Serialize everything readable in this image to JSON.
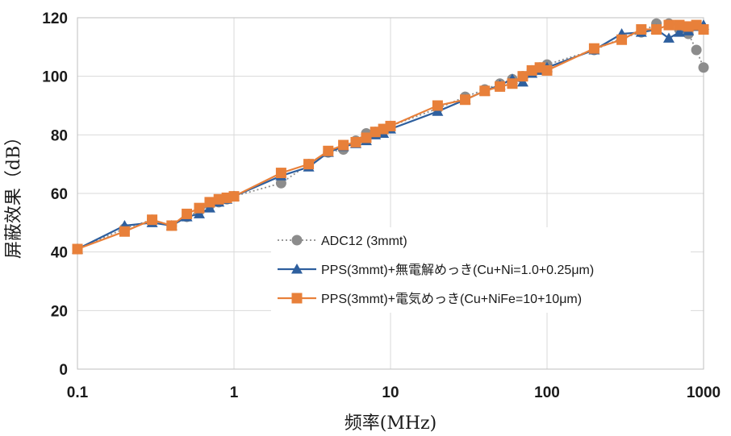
{
  "chart_data": {
    "type": "line",
    "xscale": "log",
    "xlim": [
      0.1,
      1000
    ],
    "ylim": [
      0,
      120
    ],
    "xticks": [
      0.1,
      1,
      10,
      100,
      1000
    ],
    "xtick_labels": [
      "0.1",
      "1",
      "10",
      "100",
      "1000"
    ],
    "yticks": [
      0,
      20,
      40,
      60,
      80,
      100,
      120
    ],
    "ytick_labels": [
      "0",
      "20",
      "40",
      "60",
      "80",
      "100",
      "120"
    ],
    "xlabel": "频率(MHz)",
    "ylabel": "屏蔽效果（dB）",
    "grid": true,
    "legend_position": "bottom-right",
    "series": [
      {
        "name": "ADC12 (3mmt)",
        "color": "#8c8c8c",
        "marker": "circle",
        "line_style": "dotted",
        "points": [
          [
            0.1,
            41
          ],
          [
            0.2,
            48
          ],
          [
            0.3,
            51
          ],
          [
            0.4,
            49
          ],
          [
            0.5,
            52
          ],
          [
            0.6,
            54
          ],
          [
            0.7,
            56
          ],
          [
            0.8,
            57
          ],
          [
            0.9,
            58
          ],
          [
            1,
            59
          ],
          [
            2,
            63.5
          ],
          [
            3,
            70
          ],
          [
            4,
            74
          ],
          [
            5,
            75
          ],
          [
            6,
            78
          ],
          [
            7,
            80.5
          ],
          [
            8,
            81
          ],
          [
            9,
            82
          ],
          [
            10,
            83
          ],
          [
            20,
            89
          ],
          [
            30,
            93
          ],
          [
            40,
            95.5
          ],
          [
            50,
            97.5
          ],
          [
            60,
            99
          ],
          [
            70,
            100
          ],
          [
            80,
            102
          ],
          [
            90,
            103
          ],
          [
            100,
            104
          ],
          [
            200,
            109
          ],
          [
            300,
            113
          ],
          [
            400,
            115
          ],
          [
            500,
            118
          ],
          [
            600,
            118
          ],
          [
            700,
            116
          ],
          [
            800,
            114.5
          ],
          [
            900,
            109
          ],
          [
            1000,
            103
          ]
        ]
      },
      {
        "name": "PPS(3mmt)+無電解めっき(Cu+Ni=1.0+0.25μm)",
        "color": "#2e5f9e",
        "marker": "triangle",
        "line_style": "solid",
        "points": [
          [
            0.1,
            41
          ],
          [
            0.2,
            49
          ],
          [
            0.3,
            50
          ],
          [
            0.4,
            49
          ],
          [
            0.5,
            52
          ],
          [
            0.6,
            53
          ],
          [
            0.7,
            55
          ],
          [
            0.8,
            57
          ],
          [
            0.9,
            58
          ],
          [
            1,
            59
          ],
          [
            2,
            66
          ],
          [
            3,
            69
          ],
          [
            4,
            74
          ],
          [
            5,
            76
          ],
          [
            6,
            77
          ],
          [
            7,
            78
          ],
          [
            8,
            80
          ],
          [
            9,
            80.5
          ],
          [
            10,
            82
          ],
          [
            20,
            88
          ],
          [
            30,
            92
          ],
          [
            40,
            95
          ],
          [
            50,
            97
          ],
          [
            60,
            99
          ],
          [
            70,
            98
          ],
          [
            80,
            101
          ],
          [
            90,
            102
          ],
          [
            100,
            103
          ],
          [
            200,
            109
          ],
          [
            300,
            114.5
          ],
          [
            400,
            115
          ],
          [
            500,
            116
          ],
          [
            600,
            113
          ],
          [
            700,
            115
          ],
          [
            800,
            115.5
          ],
          [
            900,
            117
          ],
          [
            1000,
            117.5
          ]
        ]
      },
      {
        "name": "PPS(3mmt)+電気めっき(Cu+NiFe=10+10μm)",
        "color": "#e8803a",
        "marker": "square",
        "line_style": "solid",
        "points": [
          [
            0.1,
            41
          ],
          [
            0.2,
            47
          ],
          [
            0.3,
            51
          ],
          [
            0.4,
            49
          ],
          [
            0.5,
            53
          ],
          [
            0.6,
            55
          ],
          [
            0.7,
            57
          ],
          [
            0.8,
            58
          ],
          [
            0.9,
            58.5
          ],
          [
            1,
            59
          ],
          [
            2,
            67
          ],
          [
            3,
            70
          ],
          [
            4,
            74.5
          ],
          [
            5,
            76.5
          ],
          [
            6,
            77.5
          ],
          [
            7,
            79
          ],
          [
            8,
            81
          ],
          [
            9,
            82
          ],
          [
            10,
            83
          ],
          [
            20,
            90
          ],
          [
            30,
            92
          ],
          [
            40,
            95
          ],
          [
            50,
            96.5
          ],
          [
            60,
            97.5
          ],
          [
            70,
            100
          ],
          [
            80,
            102
          ],
          [
            90,
            103
          ],
          [
            100,
            102
          ],
          [
            200,
            109.5
          ],
          [
            300,
            112.5
          ],
          [
            400,
            116
          ],
          [
            500,
            116
          ],
          [
            600,
            117.5
          ],
          [
            700,
            117.5
          ],
          [
            800,
            117
          ],
          [
            900,
            117.5
          ],
          [
            1000,
            116
          ]
        ]
      }
    ]
  }
}
